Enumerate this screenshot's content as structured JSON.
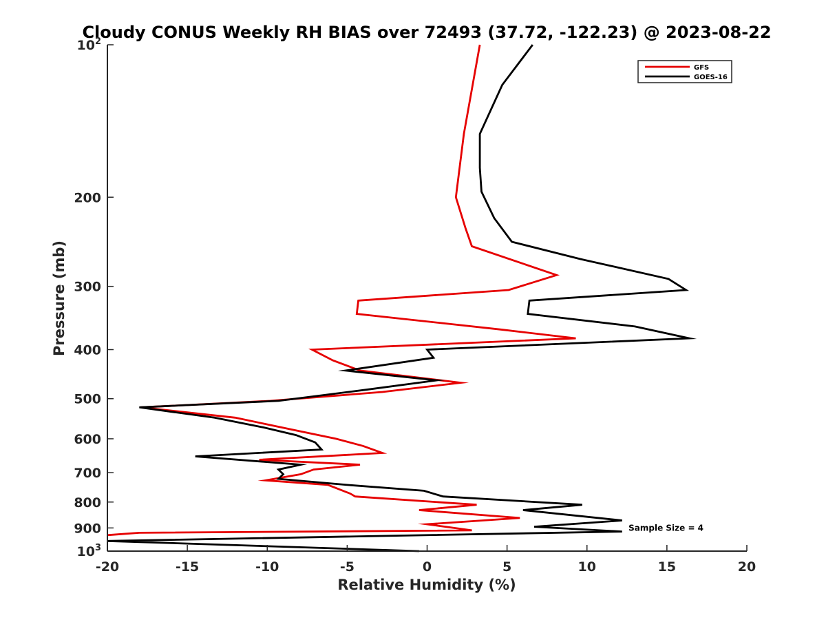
{
  "chart_data": {
    "type": "line",
    "title": "Cloudy CONUS Weekly RH BIAS over 72493 (37.72, -122.23) @ 2023-08-22",
    "xlabel": "Relative Humidity (%)",
    "ylabel": "Pressure (mb)",
    "xlim": [
      -20,
      20
    ],
    "ylim": [
      100,
      1000
    ],
    "y_scale": "log",
    "y_reversed": true,
    "grid": false,
    "legend_position": "top-right",
    "x_ticks": [
      -20,
      -15,
      -10,
      -5,
      0,
      5,
      10,
      15,
      20
    ],
    "x_tick_labels": [
      "-20",
      "-15",
      "-10",
      "-5",
      "0",
      "5",
      "10",
      "15",
      "20"
    ],
    "y_ticks": [
      100,
      200,
      300,
      400,
      500,
      600,
      700,
      800,
      900,
      1000
    ],
    "y_tick_labels": [
      {
        "base": "10",
        "sup": "2"
      },
      {
        "base": "200",
        "sup": ""
      },
      {
        "base": "300",
        "sup": ""
      },
      {
        "base": "400",
        "sup": ""
      },
      {
        "base": "500",
        "sup": ""
      },
      {
        "base": "600",
        "sup": ""
      },
      {
        "base": "700",
        "sup": ""
      },
      {
        "base": "800",
        "sup": ""
      },
      {
        "base": "900",
        "sup": ""
      },
      {
        "base": "10",
        "sup": "3"
      }
    ],
    "annotation": "Sample Size = 4",
    "annotation_at": {
      "x": 12.6,
      "y": 900
    },
    "series": [
      {
        "name": "GFS",
        "color": "#e60000",
        "points": [
          {
            "x": 3.3,
            "y": 100
          },
          {
            "x": 2.3,
            "y": 150
          },
          {
            "x": 1.8,
            "y": 200
          },
          {
            "x": 2.4,
            "y": 230
          },
          {
            "x": 2.8,
            "y": 250
          },
          {
            "x": 8.1,
            "y": 285
          },
          {
            "x": 5.1,
            "y": 305
          },
          {
            "x": -4.3,
            "y": 320
          },
          {
            "x": -4.4,
            "y": 340
          },
          {
            "x": 4.6,
            "y": 365
          },
          {
            "x": 9.3,
            "y": 380
          },
          {
            "x": -7.2,
            "y": 400
          },
          {
            "x": -5.9,
            "y": 420
          },
          {
            "x": -4.2,
            "y": 440
          },
          {
            "x": 2.1,
            "y": 465
          },
          {
            "x": -2.8,
            "y": 485
          },
          {
            "x": -9.8,
            "y": 505
          },
          {
            "x": -17.9,
            "y": 520
          },
          {
            "x": -12.0,
            "y": 545
          },
          {
            "x": -8.5,
            "y": 575
          },
          {
            "x": -5.7,
            "y": 600
          },
          {
            "x": -4.0,
            "y": 620
          },
          {
            "x": -2.8,
            "y": 640
          },
          {
            "x": -10.5,
            "y": 660
          },
          {
            "x": -4.2,
            "y": 675
          },
          {
            "x": -7.1,
            "y": 690
          },
          {
            "x": -7.9,
            "y": 705
          },
          {
            "x": -10.1,
            "y": 725
          },
          {
            "x": -6.2,
            "y": 740
          },
          {
            "x": -4.8,
            "y": 770
          },
          {
            "x": -4.5,
            "y": 780
          },
          {
            "x": 3.1,
            "y": 810
          },
          {
            "x": -0.5,
            "y": 830
          },
          {
            "x": 5.8,
            "y": 860
          },
          {
            "x": 0.0,
            "y": 885
          },
          {
            "x": 2.8,
            "y": 910
          },
          {
            "x": -18.0,
            "y": 920
          },
          {
            "x": -20.0,
            "y": 930
          }
        ]
      },
      {
        "name": "GOES-16",
        "color": "#000000",
        "points": [
          {
            "x": 6.6,
            "y": 100
          },
          {
            "x": 4.7,
            "y": 120
          },
          {
            "x": 3.3,
            "y": 150
          },
          {
            "x": 3.3,
            "y": 175
          },
          {
            "x": 3.4,
            "y": 195
          },
          {
            "x": 4.2,
            "y": 220
          },
          {
            "x": 5.3,
            "y": 245
          },
          {
            "x": 9.6,
            "y": 265
          },
          {
            "x": 15.1,
            "y": 290
          },
          {
            "x": 16.2,
            "y": 305
          },
          {
            "x": 6.4,
            "y": 320
          },
          {
            "x": 6.3,
            "y": 340
          },
          {
            "x": 13.0,
            "y": 360
          },
          {
            "x": 16.4,
            "y": 380
          },
          {
            "x": 0.0,
            "y": 400
          },
          {
            "x": 0.4,
            "y": 415
          },
          {
            "x": -5.1,
            "y": 440
          },
          {
            "x": 0.6,
            "y": 460
          },
          {
            "x": -3.8,
            "y": 480
          },
          {
            "x": -9.3,
            "y": 505
          },
          {
            "x": -18.0,
            "y": 520
          },
          {
            "x": -13.3,
            "y": 545
          },
          {
            "x": -10.2,
            "y": 570
          },
          {
            "x": -8.2,
            "y": 590
          },
          {
            "x": -7.0,
            "y": 610
          },
          {
            "x": -6.6,
            "y": 630
          },
          {
            "x": -14.5,
            "y": 650
          },
          {
            "x": -7.9,
            "y": 675
          },
          {
            "x": -9.3,
            "y": 690
          },
          {
            "x": -9.0,
            "y": 705
          },
          {
            "x": -9.3,
            "y": 720
          },
          {
            "x": -5.0,
            "y": 740
          },
          {
            "x": -0.2,
            "y": 760
          },
          {
            "x": 1.0,
            "y": 780
          },
          {
            "x": 9.7,
            "y": 810
          },
          {
            "x": 6.0,
            "y": 830
          },
          {
            "x": 12.2,
            "y": 870
          },
          {
            "x": 6.7,
            "y": 895
          },
          {
            "x": 12.2,
            "y": 915
          },
          {
            "x": -20.0,
            "y": 955
          },
          {
            "x": -0.5,
            "y": 1000
          }
        ]
      }
    ]
  }
}
